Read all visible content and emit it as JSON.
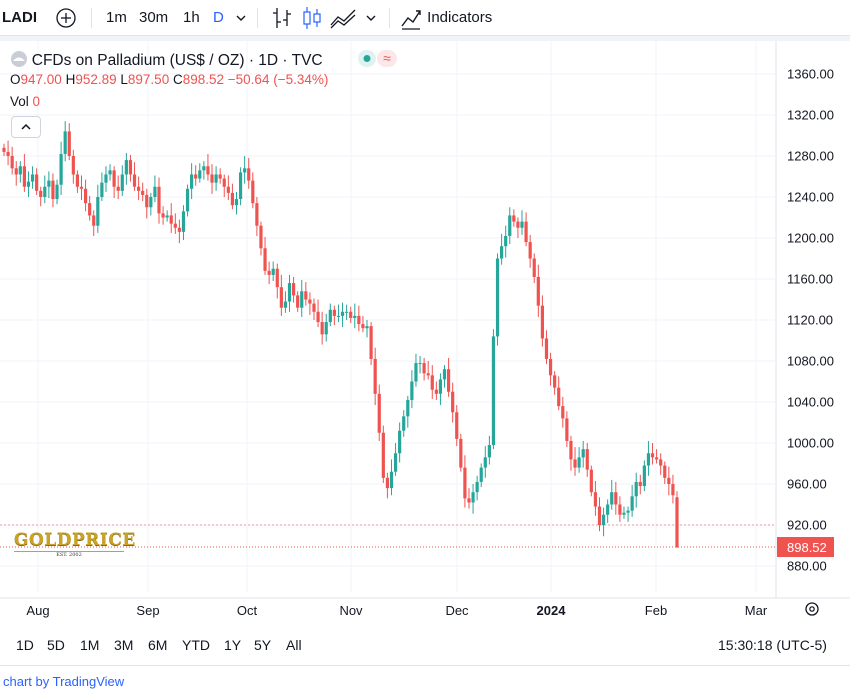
{
  "toolbar": {
    "symbol": "LADI",
    "add_label": "+",
    "intervals": [
      "1m",
      "30m",
      "1h",
      "D"
    ],
    "indicators_label": "Indicators",
    "icons": [
      "add-symbol-icon",
      "chevron-down-icon",
      "bar-style-icon",
      "candle-style-icon",
      "area-style-icon",
      "indicators-icon"
    ]
  },
  "legend": {
    "title": "CFDs on Palladium (US$ / OZ) · 1D · TVC",
    "o_label": "O",
    "o_value": "947.00",
    "h_label": "H",
    "h_value": "952.89",
    "l_label": "L",
    "l_value": "897.50",
    "c_label": "C",
    "c_value": "898.52",
    "change": "−50.64 (−5.34%)",
    "vol_label": "Vol",
    "vol_value": "0",
    "collapse_icon": "chevron-up-icon"
  },
  "watermark": {
    "brand": "GOLDPRICE",
    "sub": "EST. 2002"
  },
  "colors": {
    "up": "#26a69a",
    "down": "#ef5350",
    "grid": "#f0f3fa",
    "text": "#131722",
    "price_tag": "#ef5350"
  },
  "range_buttons": [
    "1D",
    "5D",
    "1M",
    "3M",
    "6M",
    "YTD",
    "1Y",
    "5Y",
    "All"
  ],
  "clock": "15:30:18 (UTC-5)",
  "footer": {
    "text": "chart by TradingView"
  },
  "chart_data": {
    "type": "candlestick",
    "title": "CFDs on Palladium (US$ / OZ) · 1D · TVC",
    "y_ticks": [
      "1360.00",
      "1320.00",
      "1280.00",
      "1240.00",
      "1200.00",
      "1160.00",
      "1120.00",
      "1080.00",
      "1040.00",
      "1000.00",
      "960.00",
      "920.00",
      "880.00"
    ],
    "x_ticks": [
      "Aug",
      "Sep",
      "Oct",
      "Nov",
      "Dec",
      "2024",
      "Feb",
      "Mar"
    ],
    "ylim": [
      860,
      1375
    ],
    "last_price": "898.52",
    "reference_line": 920,
    "grid": true,
    "close_approx": [
      1284,
      1280,
      1268,
      1262,
      1270,
      1250,
      1255,
      1262,
      1246,
      1240,
      1250,
      1256,
      1238,
      1252,
      1282,
      1304,
      1280,
      1262,
      1250,
      1248,
      1234,
      1222,
      1212,
      1240,
      1254,
      1262,
      1266,
      1250,
      1246,
      1262,
      1276,
      1262,
      1250,
      1246,
      1242,
      1230,
      1240,
      1250,
      1224,
      1220,
      1222,
      1214,
      1210,
      1206,
      1226,
      1248,
      1262,
      1258,
      1266,
      1270,
      1262,
      1254,
      1262,
      1258,
      1250,
      1244,
      1232,
      1238,
      1264,
      1268,
      1256,
      1234,
      1212,
      1190,
      1168,
      1164,
      1170,
      1152,
      1132,
      1138,
      1156,
      1144,
      1132,
      1148,
      1140,
      1136,
      1128,
      1118,
      1106,
      1118,
      1130,
      1124,
      1124,
      1128,
      1128,
      1122,
      1124,
      1116,
      1112,
      1114,
      1082,
      1048,
      1010,
      966,
      956,
      972,
      990,
      1012,
      1026,
      1042,
      1060,
      1078,
      1078,
      1068,
      1066,
      1052,
      1048,
      1062,
      1072,
      1050,
      1030,
      1004,
      976,
      946,
      942,
      952,
      962,
      976,
      986,
      998,
      1104,
      1180,
      1192,
      1202,
      1222,
      1216,
      1210,
      1216,
      1196,
      1180,
      1162,
      1134,
      1102,
      1082,
      1066,
      1054,
      1036,
      1024,
      1002,
      984,
      976,
      986,
      994,
      974,
      952,
      938,
      920,
      930,
      940,
      952,
      940,
      930,
      932,
      934,
      948,
      962,
      958,
      978,
      990,
      986,
      984,
      978,
      966,
      960,
      949,
      898.52
    ],
    "volume": [
      0
    ]
  }
}
